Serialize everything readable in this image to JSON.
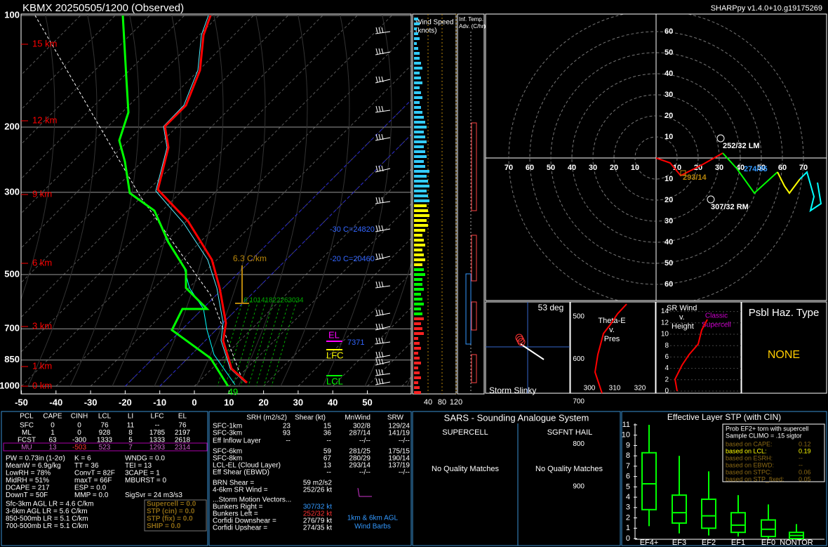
{
  "header": {
    "title": "KBMX   20250505/1200  (Observed)",
    "version": "SHARPpy v1.4.0+10.g19175269"
  },
  "skewt": {
    "pressures": [
      100,
      200,
      300,
      500,
      700,
      850,
      1000
    ],
    "heights": [
      "15 km",
      "12 km",
      "9 km",
      "6 km",
      "3 km",
      "1 km",
      "0 km"
    ],
    "temp_ticks": [
      -50,
      -40,
      -30,
      -20,
      -10,
      0,
      10,
      20,
      30,
      40,
      50
    ],
    "lapse": "6.3 C/km",
    "isotherm_labels": [
      "-30 C=24820",
      "-20 C=20460"
    ],
    "el": "EL",
    "el_height": "7371",
    "lfc": "LFC",
    "lcl": "LCL",
    "sfc_label": "49",
    "mixing_ratios": [
      6,
      10,
      14,
      18,
      22,
      26,
      30,
      34
    ]
  },
  "wind_panel": {
    "title": [
      "Wind Speed",
      "(knots)"
    ],
    "ticks": [
      40,
      80,
      120
    ]
  },
  "adv_panel": {
    "title": [
      "Inf. Temp.",
      "Adv. (C/hr)"
    ]
  },
  "hodograph": {
    "rings": [
      10,
      20,
      30,
      40,
      50,
      60,
      70
    ],
    "labels": [
      "252/32 LM",
      "307/32 RM",
      "293/14",
      "274/35"
    ]
  },
  "slinky": {
    "angle": "53 deg",
    "title": "Storm Slinky"
  },
  "theta_e": {
    "title": [
      "Theta-E",
      "v.",
      "Pres"
    ],
    "pressures": [
      500,
      600,
      700,
      800,
      900
    ],
    "temps": [
      300,
      310,
      320
    ]
  },
  "sr_wind": {
    "title": [
      "SR Wind",
      "v.",
      "Height"
    ],
    "heights": [
      0,
      2,
      4,
      6,
      8,
      10,
      12,
      14
    ],
    "note": [
      "Classic",
      "Supercell"
    ]
  },
  "hazard": {
    "title": "Psbl Haz. Type",
    "value": "NONE"
  },
  "thermo": {
    "columns": [
      "PCL",
      "CAPE",
      "CINH",
      "LCL",
      "LI",
      "LFC",
      "EL"
    ],
    "rows": [
      [
        "SFC",
        "0",
        "0",
        "76",
        "11",
        "--",
        "76"
      ],
      [
        "ML",
        "1",
        "0",
        "928",
        "8",
        "1785",
        "2197"
      ],
      [
        "FCST",
        "63",
        "-300",
        "1333",
        "5",
        "1333",
        "2618"
      ],
      [
        "MU",
        "13",
        "-503",
        "523",
        "7",
        "1293",
        "2314"
      ]
    ],
    "indices": [
      [
        "PW = 0.73in (1-2σ)",
        "K = 6",
        "WNDG = 0.0"
      ],
      [
        "MeanW = 6.9g/kg",
        "TT = 36",
        "TEI = 13"
      ],
      [
        "LowRH = 78%",
        "ConvT = 82F",
        "3CAPE = 1"
      ],
      [
        "MidRH = 51%",
        "maxT = 66F",
        "MBURST = 0"
      ],
      [
        "DCAPE = 217",
        "ESP = 0.0"
      ],
      [
        "DownT = 50F",
        "MMP = 0.0",
        "SigSvr = 24 m3/s3"
      ]
    ],
    "lapse_rates": [
      "Sfc-3km AGL LR = 4.6 C/km",
      "3-6km AGL LR = 5.6 C/km",
      "850-500mb LR = 5.1 C/km",
      "700-500mb LR = 5.1 C/km"
    ],
    "params": [
      "Supercell = 0.0",
      "STP (cin) = 0.0",
      "STP (fix) = 0.0",
      "SHIP = 0.0"
    ]
  },
  "kinematic": {
    "columns": [
      "SRH (m2/s2)",
      "Shear (kt)",
      "MnWind",
      "SRW"
    ],
    "rows": [
      [
        "SFC-1km",
        "23",
        "15",
        "302/8",
        "129/24"
      ],
      [
        "SFC-3km",
        "93",
        "36",
        "287/14",
        "141/19"
      ],
      [
        "Eff Inflow Layer",
        "--",
        "--",
        "--/--",
        "--/--"
      ],
      [
        "SFC-6km",
        null,
        "59",
        "281/25",
        "175/15"
      ],
      [
        "SFC-8km",
        null,
        "67",
        "280/29",
        "190/14"
      ],
      [
        "LCL-EL (Cloud Layer)",
        null,
        "13",
        "293/14",
        "137/19"
      ],
      [
        "Eff Shear (EBWD)",
        null,
        "--",
        "--/--",
        "--/--"
      ]
    ],
    "brn": [
      [
        "BRN Shear =",
        "59 m2/s2"
      ],
      [
        "4-6km SR Wind =",
        "252/26 kt"
      ]
    ],
    "motion_title": "...Storm Motion Vectors...",
    "motion": [
      [
        "Bunkers Right =",
        "307/32 kt"
      ],
      [
        "Bunkers Left =",
        "252/32 kt"
      ],
      [
        "Corfidi Downshear =",
        "276/79 kt"
      ],
      [
        "Corfidi Upshear =",
        "274/35 kt"
      ]
    ],
    "barb_note": [
      "1km & 6km AGL",
      "Wind Barbs"
    ]
  },
  "sars": {
    "title": "SARS - Sounding Analogue System",
    "columns": [
      "SUPERCELL",
      "SGFNT HAIL"
    ],
    "results": [
      "No Quality Matches",
      "No Quality Matches"
    ]
  },
  "stp": {
    "title": "Effective Layer STP (with CIN)",
    "ylim": [
      0,
      11
    ],
    "yticks": [
      0,
      1,
      2,
      3,
      4,
      5,
      6,
      7,
      8,
      9,
      10,
      11
    ],
    "categories": [
      "EF4+",
      "EF3",
      "EF2",
      "EF1",
      "EF0",
      "NONTOR"
    ],
    "boxes": [
      [
        1.2,
        2.8,
        5.3,
        8.3,
        11
      ],
      [
        0.5,
        1.5,
        2.5,
        4.2,
        8
      ],
      [
        0.3,
        1,
        2.2,
        3.8,
        6.5
      ],
      [
        0.2,
        0.6,
        1.3,
        2.5,
        4.2
      ],
      [
        0,
        0.2,
        0.9,
        1.8,
        3.3
      ],
      [
        0,
        0,
        0.3,
        0.6,
        1.4
      ]
    ],
    "legend_title": [
      "Prob EF2+ torn with supercell",
      "Sample CLIMO = .15 sigtor"
    ],
    "legend": [
      [
        "based on CAPE:",
        "0.12"
      ],
      [
        "based on LCL:",
        "0.19"
      ],
      [
        "based on ESRH:",
        "--"
      ],
      [
        "based on EBWD:",
        "--"
      ],
      [
        "based on STPC:",
        "0.06"
      ],
      [
        "based on STP_fixed:",
        "0.05"
      ]
    ]
  }
}
